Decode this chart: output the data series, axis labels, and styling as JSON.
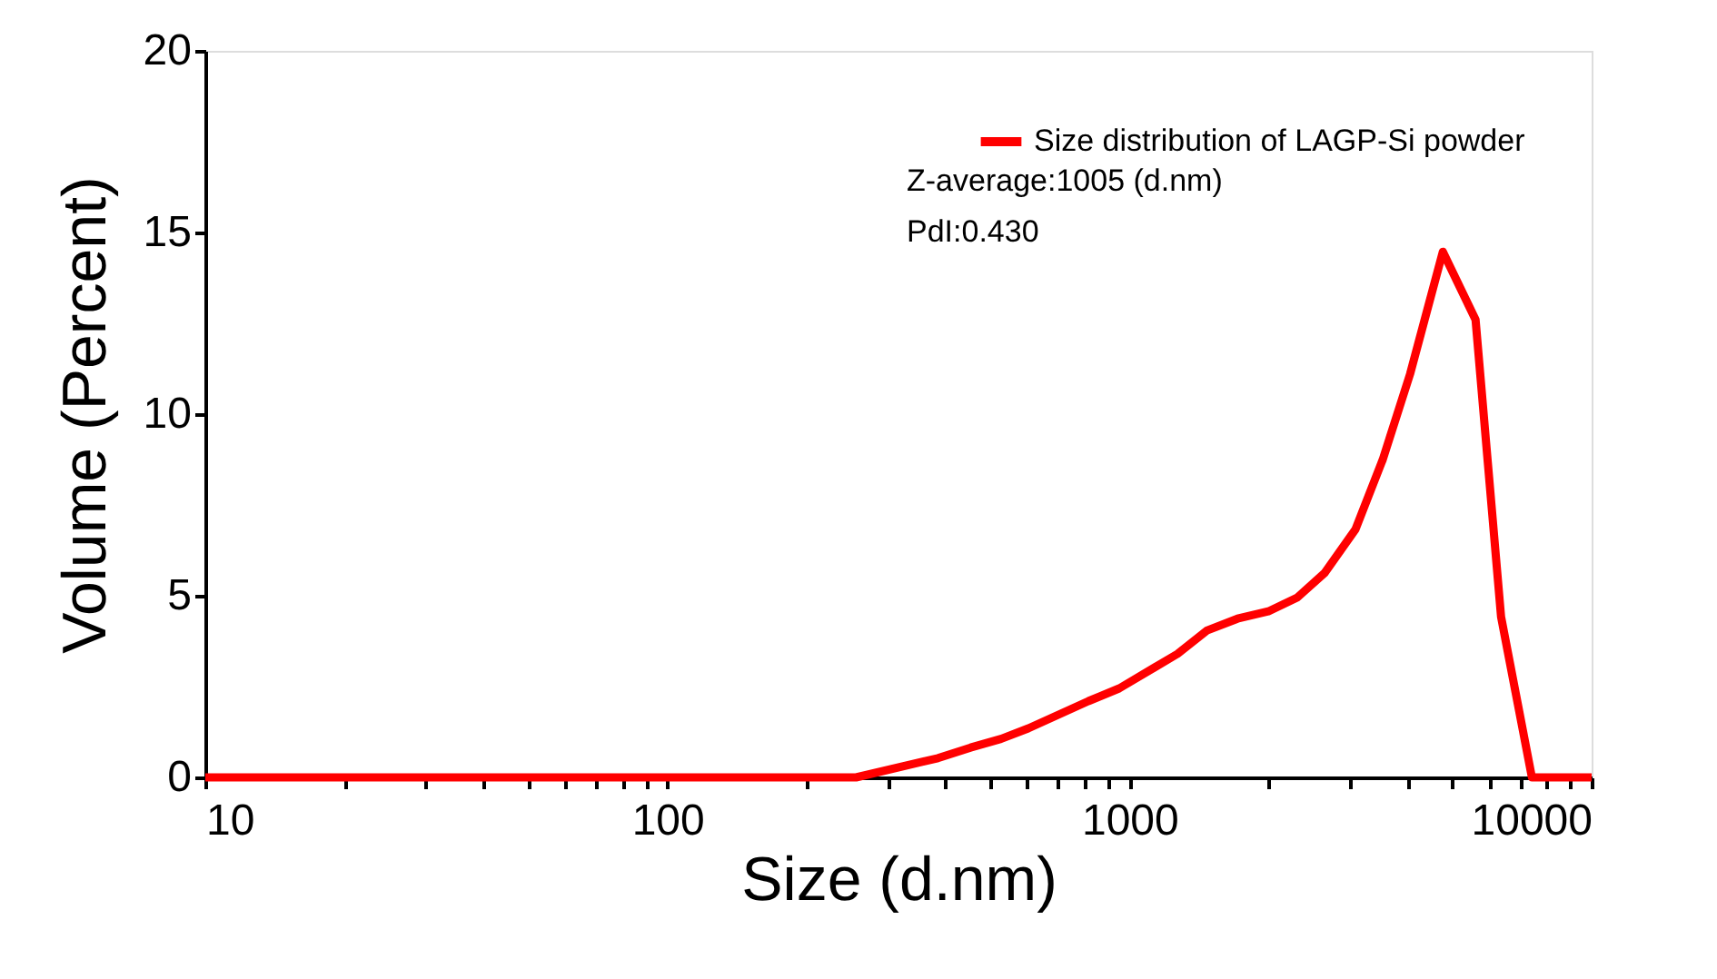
{
  "chart_data": {
    "type": "line",
    "xlabel": "Size (d.nm)",
    "ylabel": "Volume (Percent)",
    "series": [
      {
        "name": "Size distribution of LAGP-Si powder",
        "color": "#ff0000",
        "x": [
          10,
          50,
          100,
          200,
          256,
          385,
          453,
          527,
          604,
          815,
          950,
          1270,
          1469,
          1713,
          1997,
          2306,
          2644,
          3083,
          3532,
          4046,
          4765,
          5608,
          6368,
          7426,
          8500,
          10000
        ],
        "values": [
          0,
          0,
          0,
          0,
          0,
          0.53,
          0.82,
          1.06,
          1.35,
          2.1,
          2.45,
          3.4,
          4.04,
          4.37,
          4.57,
          4.95,
          5.63,
          6.83,
          8.75,
          11.1,
          14.47,
          12.6,
          4.42,
          0,
          0,
          0
        ]
      }
    ],
    "annotations": [
      "Z-average:1005 (d.nm)",
      "PdI:0.430"
    ],
    "log": "x",
    "xlim": [
      10,
      10000
    ],
    "xticks": [
      10,
      {
        "value": 20,
        "label": null
      },
      {
        "value": 30,
        "label": null
      },
      {
        "value": 40,
        "label": null
      },
      {
        "value": 50,
        "label": null
      },
      {
        "value": 60,
        "label": null
      },
      {
        "value": 70,
        "label": null
      },
      {
        "value": 80,
        "label": null
      },
      {
        "value": 90,
        "label": null
      },
      100,
      {
        "value": 200,
        "label": null
      },
      {
        "value": 300,
        "label": null
      },
      {
        "value": 400,
        "label": null
      },
      {
        "value": 500,
        "label": null
      },
      {
        "value": 600,
        "label": null
      },
      {
        "value": 700,
        "label": null
      },
      {
        "value": 800,
        "label": null
      },
      {
        "value": 900,
        "label": null
      },
      1000,
      {
        "value": 2000,
        "label": null
      },
      {
        "value": 3000,
        "label": null
      },
      {
        "value": 4000,
        "label": null
      },
      {
        "value": 5000,
        "label": null
      },
      {
        "value": 6000,
        "label": null
      },
      {
        "value": 7000,
        "label": null
      },
      {
        "value": 8000,
        "label": null
      },
      {
        "value": 9000,
        "label": null
      },
      10000
    ],
    "ylim": [
      0,
      20
    ],
    "yticks": [
      0,
      5,
      10,
      15,
      20
    ],
    "grid": false,
    "legend": "top right",
    "line_style": "solid",
    "marker": "none"
  }
}
